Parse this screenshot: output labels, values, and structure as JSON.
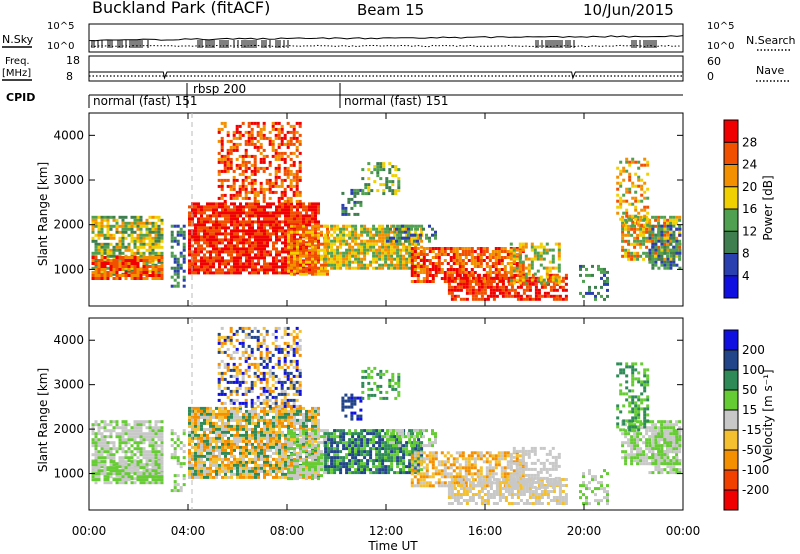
{
  "header": {
    "site": "Buckland Park (fitACF)",
    "beam": "Beam 15",
    "date": "10/Jun/2015"
  },
  "strips": {
    "nsky_label": "N.Sky",
    "nsearch_label": "N.Search",
    "nsky_ticks": [
      "10^5",
      "10^0"
    ],
    "nsearch_ticks": [
      "10^5",
      "10^0"
    ],
    "freq_label": "Freq.",
    "freq_unit": "[MHz]",
    "freq_ticks": [
      "18",
      "8"
    ],
    "nave_label": "Nave",
    "nave_ticks": [
      "60",
      "0"
    ],
    "cpid_label": "CPID",
    "cpid_segments": [
      "normal (fast) 151",
      "rbsp 200",
      "normal (fast) 151"
    ]
  },
  "x_axis": {
    "label": "Time UT",
    "ticks": [
      "00:00",
      "04:00",
      "08:00",
      "12:00",
      "16:00",
      "20:00",
      "00:00"
    ]
  },
  "colors": {
    "power": [
      "#1010e0",
      "#2a3fb0",
      "#3f7f4f",
      "#4fa050",
      "#f0d000",
      "#f29000",
      "#f05000",
      "#f00000"
    ],
    "velocity": [
      "#f00000",
      "#f24000",
      "#f49000",
      "#f4c030",
      "#c8c8c8",
      "#66cc33",
      "#2e8b57",
      "#224488",
      "#1010e0"
    ]
  },
  "chart_data": [
    {
      "type": "heatmap",
      "title": "",
      "xlabel": "Time UT",
      "ylabel": "Slant Range [km]",
      "xlim": [
        0,
        24
      ],
      "ylim": [
        180,
        4500
      ],
      "yticks": [
        "4000",
        "3000",
        "2000",
        "1000"
      ],
      "colorbar": {
        "label": "Power [dB]",
        "ticks": [
          "28",
          "24",
          "20",
          "16",
          "12",
          "8",
          "4"
        ],
        "range": [
          0,
          32
        ]
      }
    },
    {
      "type": "heatmap",
      "title": "",
      "xlabel": "Time UT",
      "ylabel": "Slant Range [km]",
      "xlim": [
        0,
        24
      ],
      "ylim": [
        180,
        4500
      ],
      "yticks": [
        "4000",
        "3000",
        "2000",
        "1000"
      ],
      "colorbar": {
        "label": "Velocity [m s⁻¹]",
        "ticks": [
          "200",
          "100",
          "50",
          "15",
          "-15",
          "-50",
          "-100",
          "-200"
        ]
      }
    }
  ]
}
